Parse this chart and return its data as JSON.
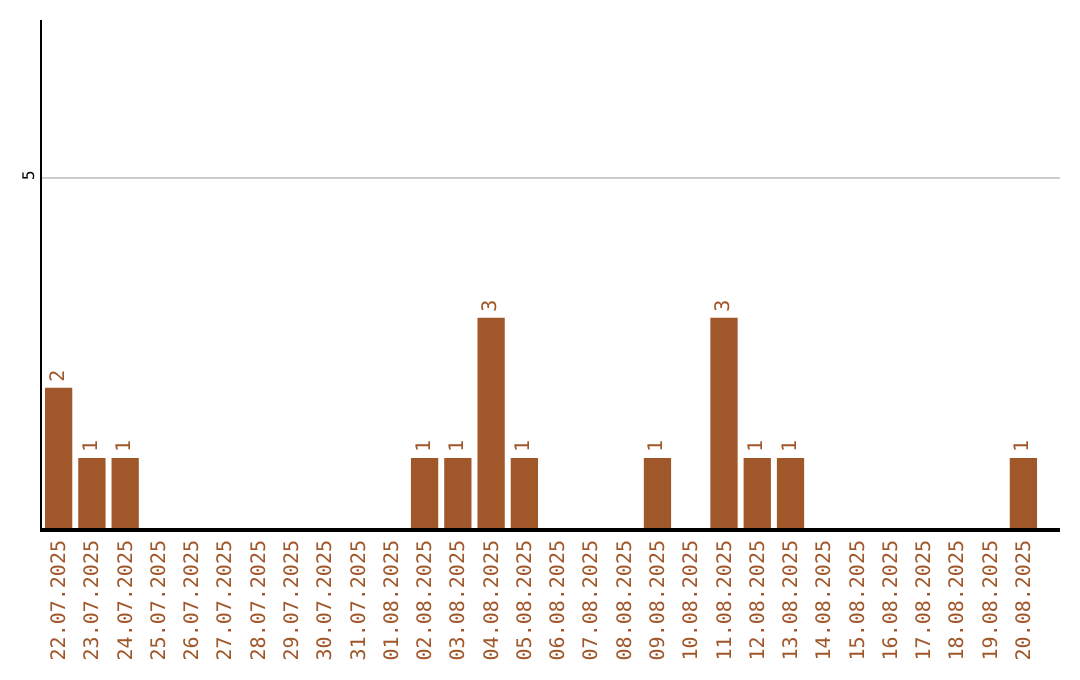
{
  "chart_data": {
    "type": "bar",
    "categories": [
      "22.07.2025",
      "23.07.2025",
      "24.07.2025",
      "25.07.2025",
      "26.07.2025",
      "27.07.2025",
      "28.07.2025",
      "29.07.2025",
      "30.07.2025",
      "31.07.2025",
      "01.08.2025",
      "02.08.2025",
      "03.08.2025",
      "04.08.2025",
      "05.08.2025",
      "06.08.2025",
      "07.08.2025",
      "08.08.2025",
      "09.08.2025",
      "10.08.2025",
      "11.08.2025",
      "12.08.2025",
      "13.08.2025",
      "14.08.2025",
      "15.08.2025",
      "16.08.2025",
      "17.08.2025",
      "18.08.2025",
      "19.08.2025",
      "20.08.2025"
    ],
    "values": [
      2,
      1,
      1,
      0,
      0,
      0,
      0,
      0,
      0,
      0,
      0,
      1,
      1,
      3,
      1,
      0,
      0,
      0,
      1,
      0,
      3,
      1,
      1,
      0,
      0,
      0,
      0,
      0,
      0,
      1
    ],
    "value_labels": [
      "2",
      "1",
      "1",
      null,
      null,
      null,
      null,
      null,
      null,
      null,
      null,
      "1",
      "1",
      "3",
      "1",
      null,
      null,
      null,
      "1",
      null,
      "3",
      "1",
      "1",
      null,
      null,
      null,
      null,
      null,
      null,
      "1"
    ],
    "color": "#a0572a",
    "ylim": [
      0,
      7.25
    ],
    "yticks": [
      5
    ],
    "grid": "y",
    "legend": false
  }
}
